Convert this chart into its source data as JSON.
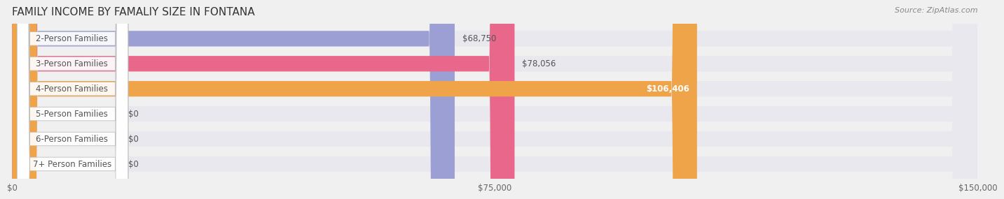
{
  "title": "FAMILY INCOME BY FAMALIY SIZE IN FONTANA",
  "source": "Source: ZipAtlas.com",
  "categories": [
    "2-Person Families",
    "3-Person Families",
    "4-Person Families",
    "5-Person Families",
    "6-Person Families",
    "7+ Person Families"
  ],
  "values": [
    68750,
    78056,
    106406,
    0,
    0,
    0
  ],
  "bar_colors": [
    "#9b9fd4",
    "#e8678a",
    "#f0a44a",
    "#f4a0a0",
    "#a0b4d8",
    "#c4b8d8"
  ],
  "label_colors": [
    "#555555",
    "#555555",
    "#ffffff",
    "#555555",
    "#555555",
    "#555555"
  ],
  "xmax": 150000,
  "xtick_labels": [
    "$0",
    "$75,000",
    "$150,000"
  ],
  "background_color": "#f0f0f0",
  "bar_bg_color": "#e8e8ee",
  "title_fontsize": 11,
  "label_fontsize": 8.5,
  "value_fontsize": 8.5
}
